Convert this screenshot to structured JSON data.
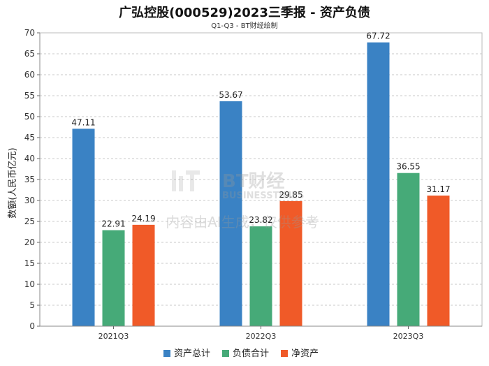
{
  "title": "广弘控股(000529)2023三季报 - 资产负债",
  "subtitle": "Q1-Q3 - BT财经绘制",
  "watermark": {
    "logo_text": "BT财经",
    "logo_sub": "BUSINESSTIMES",
    "notice": "内容由AI生成，仅供参考"
  },
  "colors": {
    "series": [
      "#3a82c4",
      "#46aa78",
      "#f05a28"
    ]
  },
  "chart_data": {
    "type": "bar",
    "title": "广弘控股(000529)2023三季报 - 资产负债",
    "subtitle": "Q1-Q3 - BT财经绘制",
    "xlabel": "",
    "ylabel": "数额(人民币亿元)",
    "ylim": [
      0,
      70
    ],
    "yticks": [
      0,
      5,
      10,
      15,
      20,
      25,
      30,
      35,
      40,
      45,
      50,
      55,
      60,
      65,
      70
    ],
    "grid": true,
    "legend_position": "bottom",
    "categories": [
      "2021Q3",
      "2022Q3",
      "2023Q3"
    ],
    "series": [
      {
        "name": "资产总计",
        "values": [
          47.11,
          53.67,
          67.72
        ]
      },
      {
        "name": "负债合计",
        "values": [
          22.91,
          23.82,
          36.55
        ]
      },
      {
        "name": "净资产",
        "values": [
          24.19,
          29.85,
          31.17
        ]
      }
    ]
  }
}
